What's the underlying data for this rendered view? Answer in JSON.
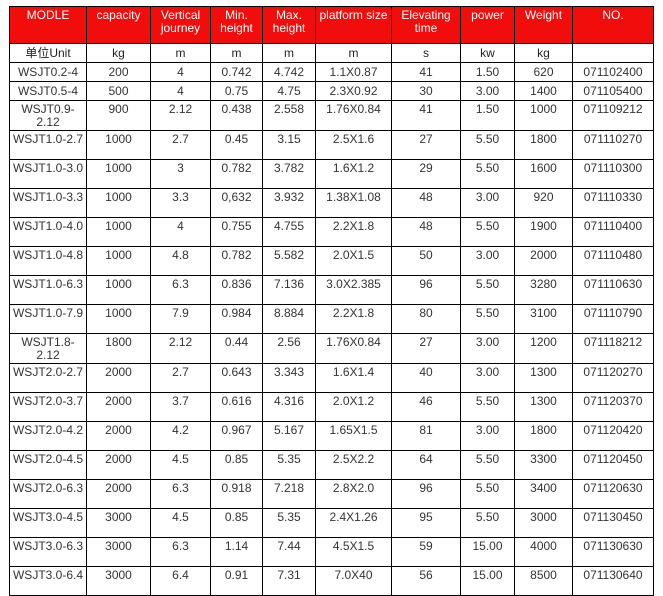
{
  "header_color": "#f20d0d",
  "headers": [
    "MODLE",
    "capacity",
    "Vertical journey",
    "Min. height",
    "Max. height",
    "platform size",
    "Elevating time",
    "power",
    "Weight",
    "NO."
  ],
  "units": [
    "单位Unit",
    "kg",
    "m",
    "m",
    "m",
    "m",
    "s",
    "kw",
    "kg",
    ""
  ],
  "rows": [
    [
      "WSJT0.2-4",
      "200",
      "4",
      "0.742",
      "4.742",
      "1.1X0.87",
      "41",
      "1.50",
      "620",
      "071102400"
    ],
    [
      "WSJT0.5-4",
      "500",
      "4",
      "0.75",
      "4.75",
      "2.3X0.92",
      "30",
      "3.00",
      "1400",
      "071105400"
    ],
    [
      "WSJT0.9-2.12",
      "900",
      "2.12",
      "0.438",
      "2.558",
      "1.76X0.84",
      "41",
      "1.50",
      "1000",
      "071109212"
    ],
    [
      "WSJT1.0-2.7",
      "1000",
      "2.7",
      "0.45",
      "3.15",
      "2.5X1.6",
      "27",
      "5.50",
      "1800",
      "071110270"
    ],
    [
      "WSJT1.0-3.0",
      "1000",
      "3",
      "0.782",
      "3.782",
      "1.6X1.2",
      "29",
      "5.50",
      "1600",
      "071110300"
    ],
    [
      "WSJT1.0-3.3",
      "1000",
      "3.3",
      "0,632",
      "3.932",
      "1.38X1.08",
      "48",
      "3.00",
      "920",
      "071110330"
    ],
    [
      "WSJT1.0-4.0",
      "1000",
      "4",
      "0.755",
      "4.755",
      "2.2X1.8",
      "48",
      "5.50",
      "1900",
      "071110400"
    ],
    [
      "WSJT1.0-4.8",
      "1000",
      "4.8",
      "0.782",
      "5.582",
      "2.0X1.5",
      "50",
      "3.00",
      "2000",
      "071110480"
    ],
    [
      "WSJT1.0-6.3",
      "1000",
      "6.3",
      "0.836",
      "7.136",
      "3.0X2.385",
      "96",
      "5.50",
      "3280",
      "071110630"
    ],
    [
      "WSJT1.0-7.9",
      "1000",
      "7.9",
      "0.984",
      "8.884",
      "2.2X1.8",
      "80",
      "5.50",
      "3100",
      "071110790"
    ],
    [
      "WSJT1.8-2.12",
      "1800",
      "2.12",
      "0.44",
      "2.56",
      "1.76X0.84",
      "27",
      "3.00",
      "1200",
      "071118212"
    ],
    [
      "WSJT2.0-2.7",
      "2000",
      "2.7",
      "0.643",
      "3.343",
      "1.6X1.4",
      "40",
      "3.00",
      "1300",
      "071120270"
    ],
    [
      "WSJT2.0-3.7",
      "2000",
      "3.7",
      "0.616",
      "4.316",
      "2.0X1.2",
      "46",
      "5.50",
      "1300",
      "071120370"
    ],
    [
      "WSJT2.0-4.2",
      "2000",
      "4.2",
      "0.967",
      "5.167",
      "1.65X1.5",
      "81",
      "3.00",
      "1800",
      "071120420"
    ],
    [
      "WSJT2.0-4.5",
      "2000",
      "4.5",
      "0.85",
      "5.35",
      "2.5X2.2",
      "64",
      "5.50",
      "3300",
      "071120450"
    ],
    [
      "WSJT2.0-6.3",
      "2000",
      "6.3",
      "0.918",
      "7.218",
      "2.8X2.0",
      "96",
      "5.50",
      "3400",
      "071120630"
    ],
    [
      "WSJT3.0-4.5",
      "3000",
      "4.5",
      "0.85",
      "5.35",
      "2.4X1.26",
      "95",
      "5.50",
      "3000",
      "071130450"
    ],
    [
      "WSJT3.0-6.3",
      "3000",
      "6.3",
      "1.14",
      "7.44",
      "4.5X1.5",
      "59",
      "15.00",
      "4000",
      "071130630"
    ],
    [
      "WSJT3.0-6.4",
      "3000",
      "6.4",
      "0.91",
      "7.31",
      "7.0X40",
      "56",
      "15.00",
      "8500",
      "071130640"
    ]
  ]
}
